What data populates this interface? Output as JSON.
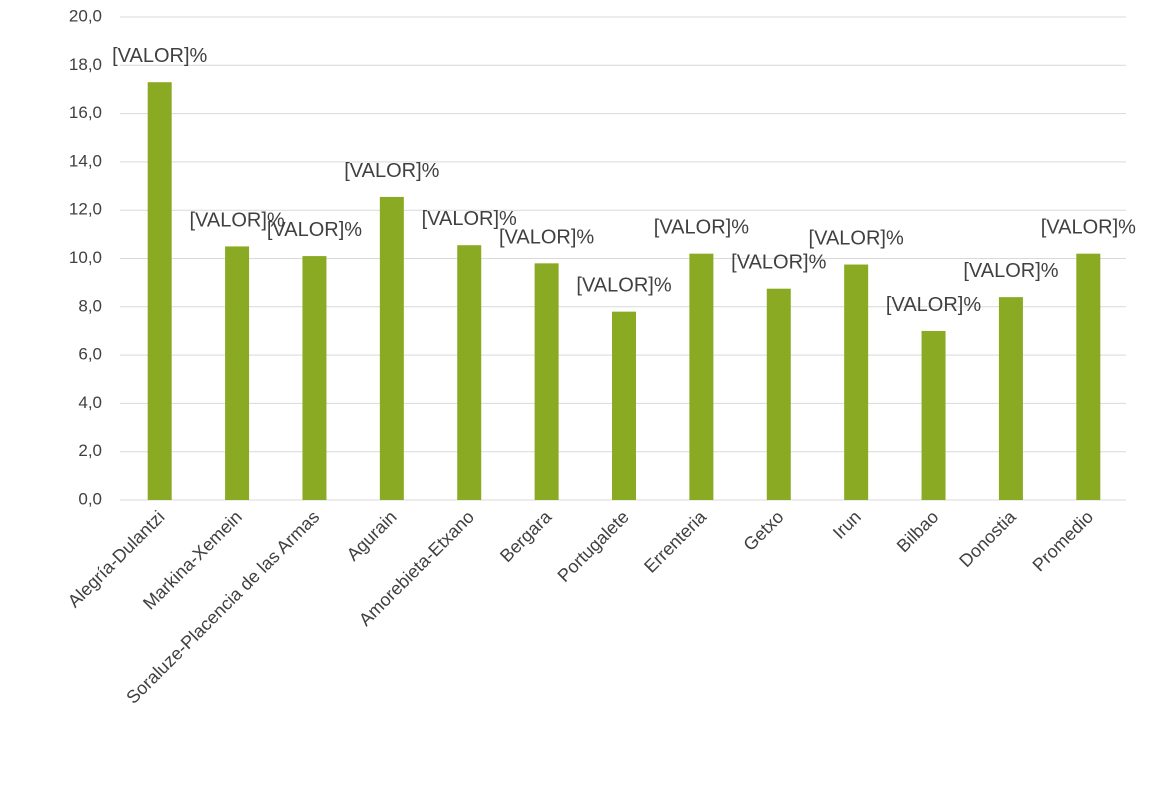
{
  "chart_data": {
    "type": "bar",
    "categories": [
      "Alegría-Dulantzi",
      "Markina-Xemein",
      "Soraluze-Placencia de las Armas",
      "Agurain",
      "Amorebieta-Etxano",
      "Bergara",
      "Portugalete",
      "Errenteria",
      "Getxo",
      "Irun",
      "Bilbao",
      "Donostia",
      "Promedio"
    ],
    "values": [
      17.3,
      10.5,
      10.1,
      12.55,
      10.55,
      9.8,
      7.8,
      10.2,
      8.75,
      9.75,
      7.0,
      8.4,
      10.2
    ],
    "value_labels": [
      "[VALOR]%",
      "[VALOR]%",
      "[VALOR]%",
      "[VALOR]%",
      "[VALOR]%",
      "[VALOR]%",
      "[VALOR]%",
      "[VALOR]%",
      "[VALOR]%",
      "[VALOR]%",
      "[VALOR]%",
      "[VALOR]%",
      "[VALOR]%"
    ],
    "color": "#8aaa23",
    "ylim": [
      0,
      20
    ],
    "yticks": [
      {
        "value": 0,
        "label": "0,0"
      },
      {
        "value": 2,
        "label": "2,0"
      },
      {
        "value": 4,
        "label": "4,0"
      },
      {
        "value": 6,
        "label": "6,0"
      },
      {
        "value": 8,
        "label": "8,0"
      },
      {
        "value": 10,
        "label": "10,0"
      },
      {
        "value": 12,
        "label": "12,0"
      },
      {
        "value": 14,
        "label": "14,0"
      },
      {
        "value": 16,
        "label": "16,0"
      },
      {
        "value": 18,
        "label": "18,0"
      },
      {
        "value": 20,
        "label": "20,0"
      }
    ],
    "grid": true
  }
}
